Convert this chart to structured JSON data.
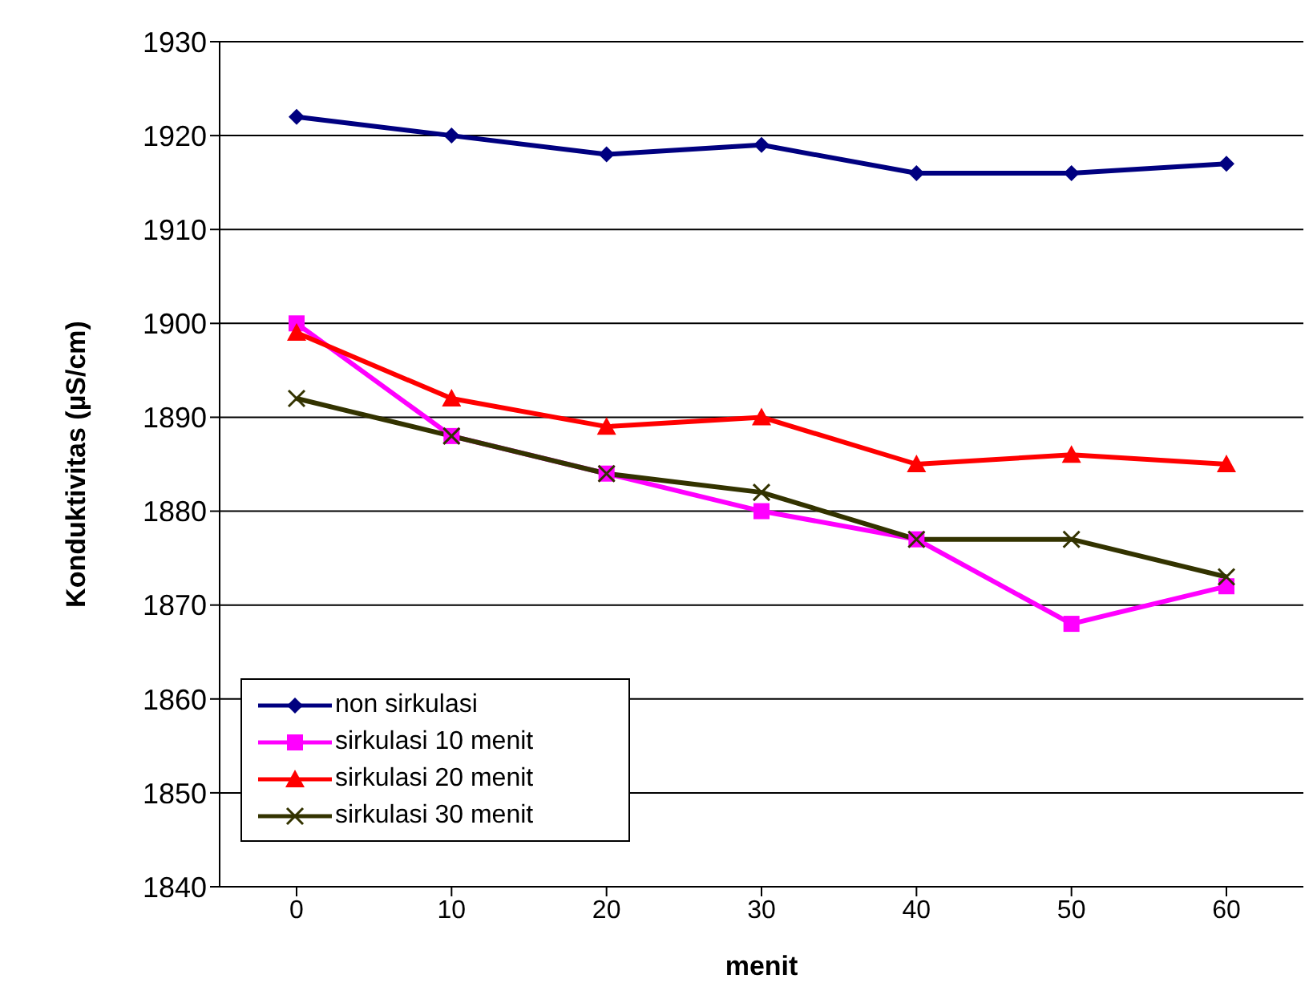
{
  "chart_data": {
    "type": "line",
    "xlabel": "menit",
    "ylabel": "Konduktivitas (µS/cm)",
    "categories": [
      "0",
      "10",
      "20",
      "30",
      "40",
      "50",
      "60"
    ],
    "series": [
      {
        "name": "non sirkulasi",
        "color": "#000080",
        "marker": "diamond",
        "values": [
          1922,
          1920,
          1918,
          1919,
          1916,
          1916,
          1917
        ]
      },
      {
        "name": "sirkulasi 10 menit",
        "color": "#ff00ff",
        "marker": "square",
        "values": [
          1900,
          1888,
          1884,
          1880,
          1877,
          1868,
          1872
        ]
      },
      {
        "name": "sirkulasi 20 menit",
        "color": "#ff0000",
        "marker": "triangle",
        "values": [
          1899,
          1892,
          1889,
          1890,
          1885,
          1886,
          1885
        ]
      },
      {
        "name": "sirkulasi 30 menit",
        "color": "#333300",
        "marker": "cross",
        "values": [
          1892,
          1888,
          1884,
          1882,
          1877,
          1877,
          1873
        ]
      }
    ],
    "ylim": [
      1840,
      1930
    ],
    "yticks": [
      1840,
      1850,
      1860,
      1870,
      1880,
      1890,
      1900,
      1910,
      1920,
      1930
    ],
    "grid": "y",
    "legend": "bottom left"
  }
}
